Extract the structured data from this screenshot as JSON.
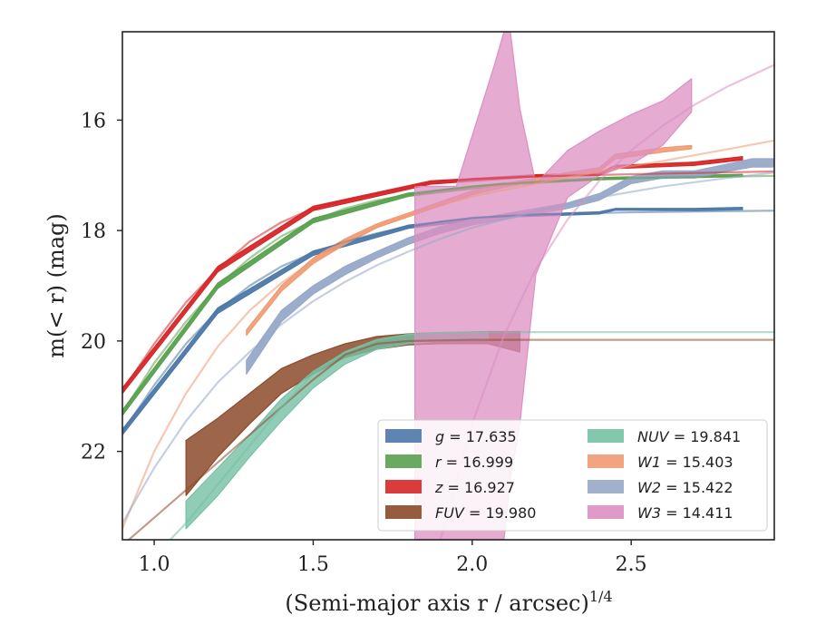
{
  "chart_data": {
    "type": "line",
    "xlabel": "(Semi-major axis r / arcsec)",
    "xlabel_sup": "1/4",
    "ylabel": "m(< r) (mag)",
    "xlim": [
      0.9,
      2.95
    ],
    "ylim": [
      23.6,
      14.4
    ],
    "y_inverted": true,
    "xticks": [
      1.0,
      1.5,
      2.0,
      2.5
    ],
    "xtick_labels": [
      "1.0",
      "1.5",
      "2.0",
      "2.5"
    ],
    "yticks": [
      16,
      18,
      20,
      22
    ],
    "ytick_labels": [
      "16",
      "18",
      "20",
      "22"
    ],
    "grid": false,
    "legend_position": "lower-right",
    "legend_columns": 2,
    "series": [
      {
        "name": "g = 17.635",
        "legend_var": "g",
        "legend_val": "17.635",
        "color": "#4c78a8",
        "model": [
          [
            0.9,
            21.65
          ],
          [
            1.0,
            20.8
          ],
          [
            1.1,
            20.05
          ],
          [
            1.2,
            19.45
          ],
          [
            1.3,
            19.0
          ],
          [
            1.4,
            18.65
          ],
          [
            1.5,
            18.4
          ],
          [
            1.6,
            18.2
          ],
          [
            1.7,
            18.05
          ],
          [
            1.8,
            17.93
          ],
          [
            1.9,
            17.84
          ],
          [
            2.0,
            17.77
          ],
          [
            2.2,
            17.71
          ],
          [
            2.5,
            17.67
          ],
          [
            2.95,
            17.64
          ]
        ],
        "data_band": [
          [
            0.9,
            21.7,
            21.6
          ],
          [
            1.2,
            19.5,
            19.4
          ],
          [
            1.5,
            18.45,
            18.37
          ],
          [
            1.8,
            17.96,
            17.9
          ],
          [
            2.1,
            17.76,
            17.72
          ],
          [
            2.4,
            17.7,
            17.66
          ],
          [
            2.45,
            17.63,
            17.6
          ],
          [
            2.7,
            17.64,
            17.6
          ],
          [
            2.85,
            17.62,
            17.58
          ]
        ],
        "band_opacity": 0.95
      },
      {
        "name": "r = 16.999",
        "legend_var": "r",
        "legend_val": "16.999",
        "color": "#59a14f",
        "model": [
          [
            0.9,
            21.3
          ],
          [
            1.0,
            20.4
          ],
          [
            1.1,
            19.65
          ],
          [
            1.2,
            19.0
          ],
          [
            1.3,
            18.5
          ],
          [
            1.4,
            18.1
          ],
          [
            1.5,
            17.82
          ],
          [
            1.6,
            17.6
          ],
          [
            1.7,
            17.45
          ],
          [
            1.8,
            17.35
          ],
          [
            1.9,
            17.27
          ],
          [
            2.0,
            17.2
          ],
          [
            2.2,
            17.12
          ],
          [
            2.5,
            17.05
          ],
          [
            2.95,
            17.01
          ]
        ],
        "data_band": [
          [
            0.9,
            21.35,
            21.25
          ],
          [
            1.2,
            19.05,
            18.95
          ],
          [
            1.5,
            17.86,
            17.78
          ],
          [
            1.8,
            17.38,
            17.32
          ],
          [
            2.1,
            17.18,
            17.14
          ],
          [
            2.4,
            17.08,
            17.04
          ],
          [
            2.85,
            17.02,
            16.98
          ]
        ],
        "band_opacity": 0.95
      },
      {
        "name": "z = 16.927",
        "legend_var": "z",
        "legend_val": "16.927",
        "color": "#d62728",
        "model": [
          [
            0.9,
            20.9
          ],
          [
            1.0,
            20.05
          ],
          [
            1.1,
            19.3
          ],
          [
            1.2,
            18.7
          ],
          [
            1.3,
            18.2
          ],
          [
            1.4,
            17.85
          ],
          [
            1.5,
            17.6
          ],
          [
            1.6,
            17.45
          ],
          [
            1.7,
            17.33
          ],
          [
            1.8,
            17.22
          ],
          [
            1.87,
            17.13
          ],
          [
            2.0,
            17.07
          ],
          [
            2.2,
            17.02
          ],
          [
            2.5,
            16.98
          ],
          [
            2.95,
            16.93
          ]
        ],
        "data_band": [
          [
            0.9,
            20.95,
            20.85
          ],
          [
            1.2,
            18.75,
            18.65
          ],
          [
            1.5,
            17.64,
            17.56
          ],
          [
            1.87,
            17.16,
            17.1
          ],
          [
            2.2,
            17.03,
            16.99
          ],
          [
            2.4,
            17.0,
            16.96
          ],
          [
            2.45,
            16.88,
            16.82
          ],
          [
            2.7,
            16.82,
            16.76
          ],
          [
            2.85,
            16.72,
            16.66
          ]
        ],
        "band_opacity": 0.95
      },
      {
        "name": "FUV = 19.980",
        "legend_var": "FUV",
        "legend_val": "19.980",
        "color": "#8c4a2a",
        "model": [
          [
            0.9,
            23.7
          ],
          [
            1.0,
            23.2
          ],
          [
            1.1,
            22.7
          ],
          [
            1.2,
            22.2
          ],
          [
            1.3,
            21.7
          ],
          [
            1.4,
            21.2
          ],
          [
            1.5,
            20.7
          ],
          [
            1.6,
            20.25
          ],
          [
            1.7,
            20.05
          ],
          [
            1.8,
            20.0
          ],
          [
            2.0,
            19.98
          ],
          [
            2.95,
            19.98
          ]
        ],
        "data_band": [
          [
            1.1,
            21.8,
            22.8
          ],
          [
            1.2,
            21.4,
            22.1
          ],
          [
            1.3,
            20.95,
            21.5
          ],
          [
            1.4,
            20.5,
            20.95
          ],
          [
            1.5,
            20.25,
            20.6
          ],
          [
            1.6,
            20.05,
            20.3
          ],
          [
            1.7,
            19.92,
            20.15
          ],
          [
            1.8,
            19.87,
            20.07
          ],
          [
            1.9,
            19.85,
            20.05
          ],
          [
            2.05,
            19.83,
            20.05
          ],
          [
            2.15,
            19.83,
            20.2
          ]
        ],
        "band_opacity": 0.85
      },
      {
        "name": "NUV = 19.841",
        "legend_var": "NUV",
        "legend_val": "19.841",
        "color": "#76c1a4",
        "model": [
          [
            0.9,
            24.5
          ],
          [
            1.0,
            23.9
          ],
          [
            1.1,
            23.3
          ],
          [
            1.2,
            22.6
          ],
          [
            1.3,
            21.9
          ],
          [
            1.4,
            21.2
          ],
          [
            1.5,
            20.6
          ],
          [
            1.6,
            20.2
          ],
          [
            1.7,
            19.98
          ],
          [
            1.8,
            19.88
          ],
          [
            1.9,
            19.85
          ],
          [
            2.1,
            19.84
          ],
          [
            2.95,
            19.84
          ]
        ],
        "data_band": [
          [
            1.1,
            22.9,
            23.4
          ],
          [
            1.2,
            22.3,
            22.8
          ],
          [
            1.3,
            21.7,
            22.1
          ],
          [
            1.4,
            21.05,
            21.45
          ],
          [
            1.5,
            20.55,
            20.85
          ],
          [
            1.6,
            20.2,
            20.42
          ],
          [
            1.7,
            19.98,
            20.15
          ],
          [
            1.8,
            19.88,
            20.05
          ],
          [
            1.9,
            19.85,
            20.0
          ],
          [
            2.05,
            19.84,
            19.98
          ]
        ],
        "band_opacity": 0.8
      },
      {
        "name": "W1 = 15.403",
        "legend_var": "W1",
        "legend_val": "15.403",
        "color": "#ef9a71",
        "model": [
          [
            0.9,
            23.4
          ],
          [
            1.0,
            22.0
          ],
          [
            1.1,
            20.95
          ],
          [
            1.2,
            20.1
          ],
          [
            1.3,
            19.45
          ],
          [
            1.4,
            18.95
          ],
          [
            1.5,
            18.55
          ],
          [
            1.6,
            18.2
          ],
          [
            1.7,
            17.93
          ],
          [
            1.8,
            17.72
          ],
          [
            1.9,
            17.55
          ],
          [
            2.0,
            17.38
          ],
          [
            2.2,
            17.15
          ],
          [
            2.4,
            16.93
          ],
          [
            2.6,
            16.74
          ],
          [
            2.8,
            16.53
          ],
          [
            2.95,
            16.37
          ]
        ],
        "data_band": [
          [
            1.29,
            19.9,
            19.8
          ],
          [
            1.4,
            19.1,
            19.0
          ],
          [
            1.5,
            18.6,
            18.5
          ],
          [
            1.6,
            18.25,
            18.15
          ],
          [
            1.7,
            17.95,
            17.88
          ],
          [
            1.8,
            17.75,
            17.68
          ],
          [
            1.9,
            17.55,
            17.48
          ],
          [
            2.0,
            17.35,
            17.28
          ],
          [
            2.1,
            17.22,
            17.15
          ],
          [
            2.2,
            17.12,
            17.05
          ],
          [
            2.3,
            17.02,
            16.95
          ],
          [
            2.4,
            16.93,
            16.86
          ],
          [
            2.45,
            16.7,
            16.62
          ],
          [
            2.6,
            16.58,
            16.5
          ],
          [
            2.69,
            16.52,
            16.46
          ]
        ],
        "band_opacity": 0.9
      },
      {
        "name": "W2 = 15.422",
        "legend_var": "W2",
        "legend_val": "15.422",
        "color": "#97a8c8",
        "model": [
          [
            0.9,
            23.3
          ],
          [
            1.0,
            22.3
          ],
          [
            1.1,
            21.45
          ],
          [
            1.2,
            20.75
          ],
          [
            1.3,
            20.2
          ],
          [
            1.4,
            19.7
          ],
          [
            1.5,
            19.28
          ],
          [
            1.6,
            18.93
          ],
          [
            1.7,
            18.63
          ],
          [
            1.8,
            18.38
          ],
          [
            1.9,
            18.15
          ],
          [
            2.0,
            17.95
          ],
          [
            2.2,
            17.65
          ],
          [
            2.4,
            17.4
          ],
          [
            2.6,
            17.2
          ],
          [
            2.8,
            17.05
          ],
          [
            2.95,
            16.95
          ]
        ],
        "data_band": [
          [
            1.29,
            20.6,
            20.35
          ],
          [
            1.4,
            19.65,
            19.45
          ],
          [
            1.5,
            19.15,
            19.0
          ],
          [
            1.6,
            18.8,
            18.65
          ],
          [
            1.7,
            18.5,
            18.38
          ],
          [
            1.8,
            18.25,
            18.13
          ],
          [
            1.9,
            18.05,
            17.93
          ],
          [
            2.0,
            17.9,
            17.8
          ],
          [
            2.1,
            17.8,
            17.7
          ],
          [
            2.2,
            17.7,
            17.6
          ],
          [
            2.3,
            17.6,
            17.5
          ],
          [
            2.4,
            17.45,
            17.33
          ],
          [
            2.5,
            17.15,
            17.02
          ],
          [
            2.6,
            17.05,
            16.92
          ],
          [
            2.7,
            17.05,
            16.92
          ],
          [
            2.8,
            16.93,
            16.8
          ],
          [
            2.88,
            16.85,
            16.7
          ],
          [
            2.95,
            16.85,
            16.7
          ]
        ],
        "band_opacity": 0.95
      },
      {
        "name": "W3 = 14.411",
        "legend_var": "W3",
        "legend_val": "14.411",
        "color": "#dc8fc2",
        "model": [
          [
            1.9,
            23.6
          ],
          [
            2.0,
            21.5
          ],
          [
            2.1,
            19.9
          ],
          [
            2.2,
            18.7
          ],
          [
            2.3,
            17.8
          ],
          [
            2.4,
            17.1
          ],
          [
            2.5,
            16.55
          ],
          [
            2.6,
            16.1
          ],
          [
            2.7,
            15.72
          ],
          [
            2.8,
            15.4
          ],
          [
            2.95,
            15.0
          ]
        ],
        "data_band": [
          [
            1.82,
            17.2,
            23.6
          ],
          [
            1.95,
            17.2,
            23.6
          ],
          [
            2.07,
            15.0,
            23.6
          ],
          [
            2.1,
            14.4,
            23.6
          ],
          [
            2.12,
            14.4,
            22.5
          ],
          [
            2.15,
            15.8,
            21.5
          ],
          [
            2.2,
            17.15,
            18.8
          ],
          [
            2.3,
            16.55,
            17.4
          ],
          [
            2.4,
            16.2,
            17.0
          ],
          [
            2.5,
            15.9,
            16.8
          ],
          [
            2.6,
            15.65,
            16.45
          ],
          [
            2.69,
            15.25,
            15.85
          ]
        ],
        "band_opacity": 0.75
      }
    ]
  }
}
